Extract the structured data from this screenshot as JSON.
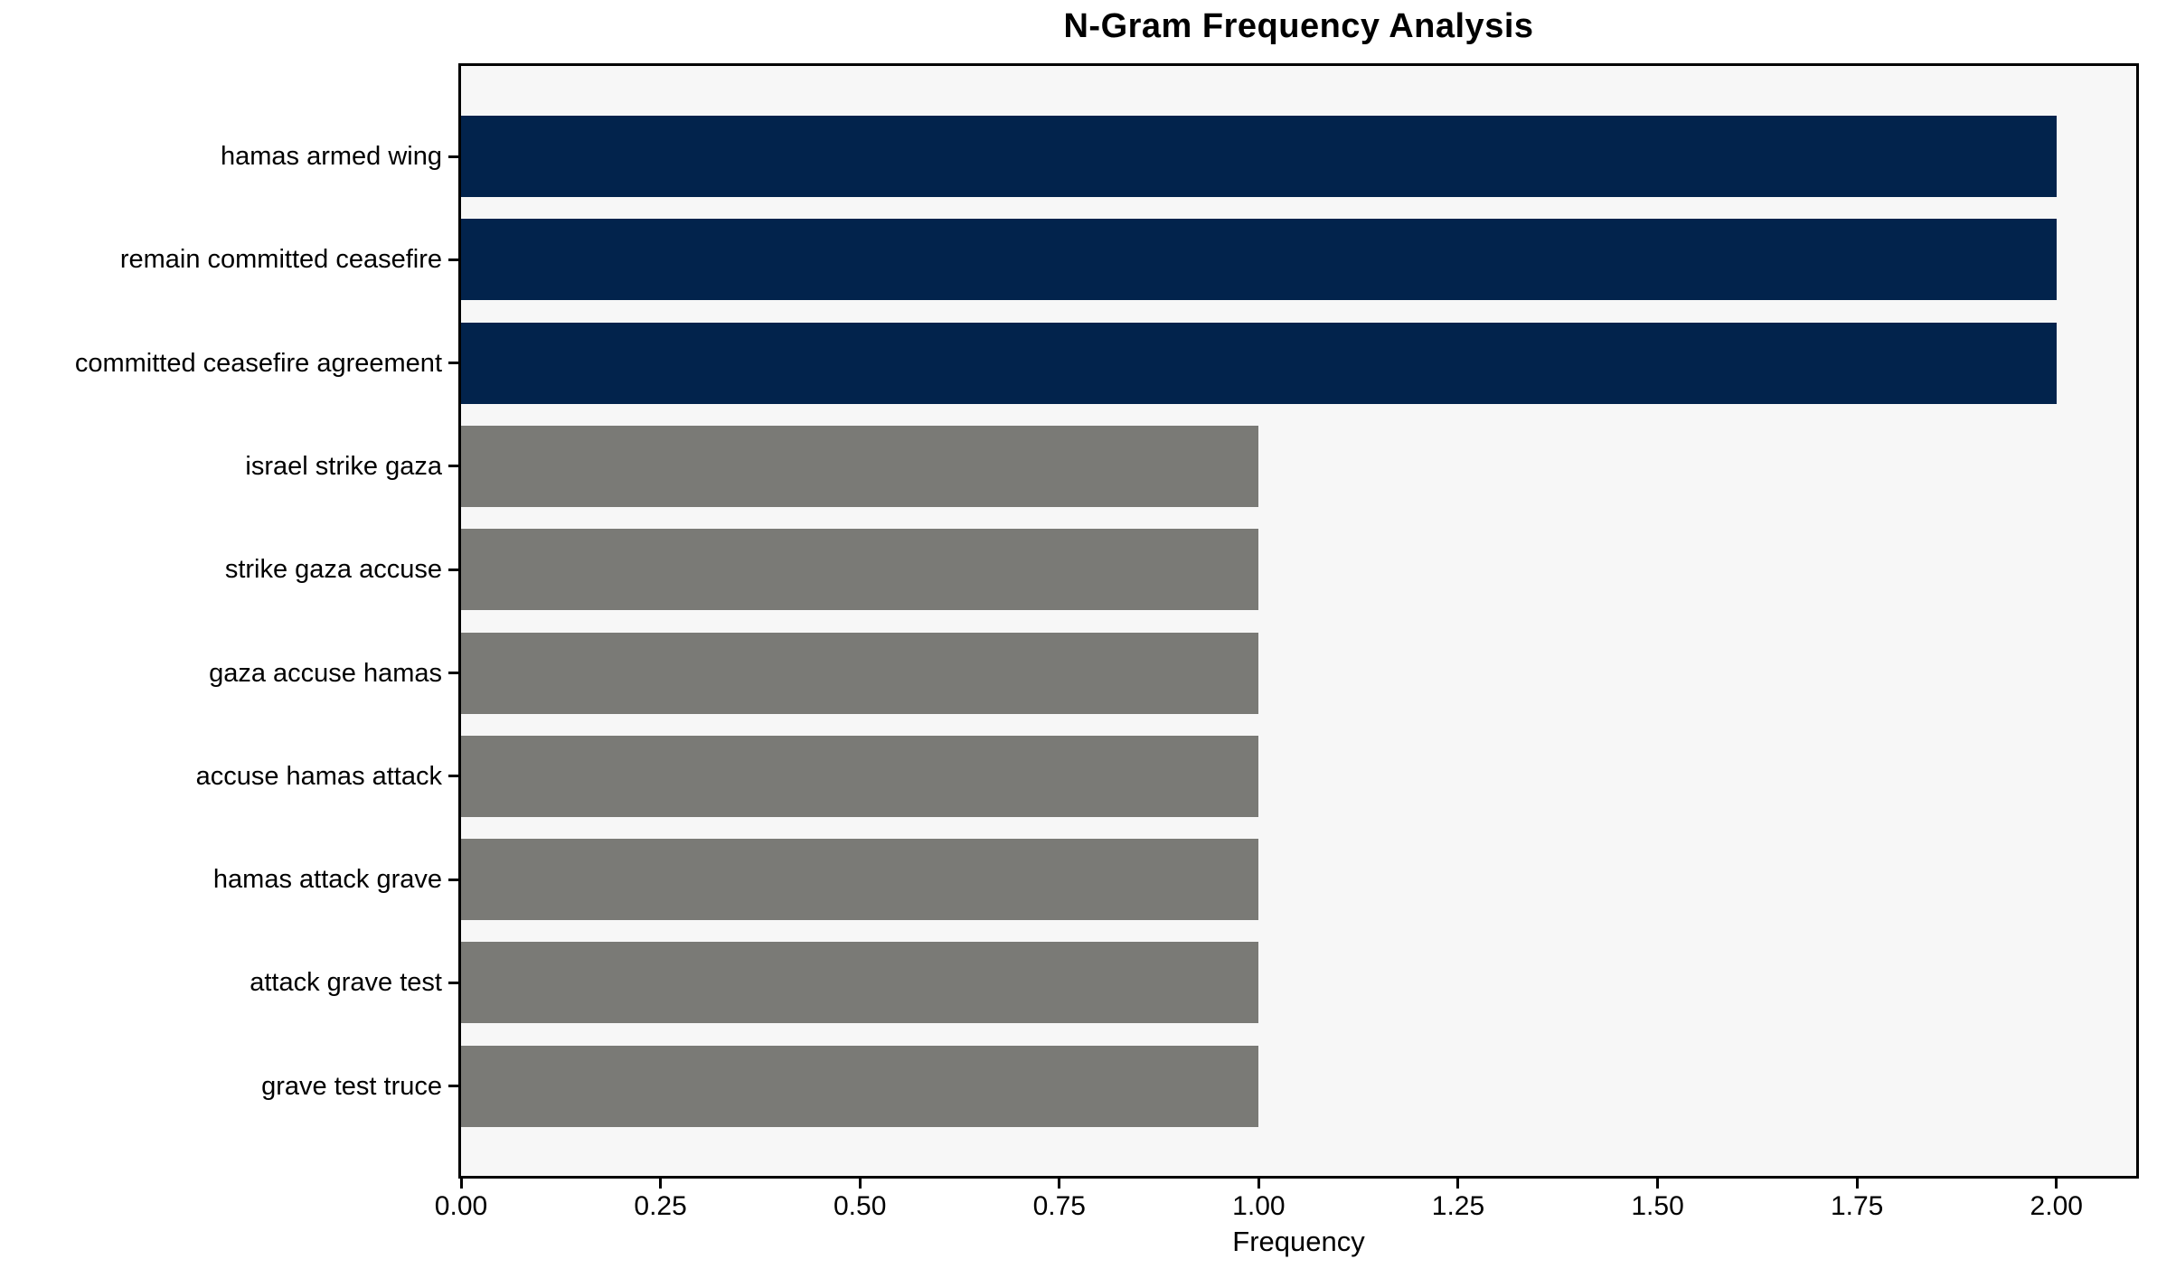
{
  "chart_data": {
    "type": "bar",
    "orientation": "horizontal",
    "title": "N-Gram Frequency Analysis",
    "xlabel": "Frequency",
    "ylabel": "",
    "categories": [
      "hamas armed wing",
      "remain committed ceasefire",
      "committed ceasefire agreement",
      "israel strike gaza",
      "strike gaza accuse",
      "gaza accuse hamas",
      "accuse hamas attack",
      "hamas attack grave",
      "attack grave test",
      "grave test truce"
    ],
    "values": [
      2,
      2,
      2,
      1,
      1,
      1,
      1,
      1,
      1,
      1
    ],
    "bar_colors": [
      "#02234c",
      "#02234c",
      "#02234c",
      "#7a7a76",
      "#7a7a76",
      "#7a7a76",
      "#7a7a76",
      "#7a7a76",
      "#7a7a76",
      "#7a7a76"
    ],
    "x_ticks": [
      "0.00",
      "0.25",
      "0.50",
      "0.75",
      "1.00",
      "1.25",
      "1.50",
      "1.75",
      "2.00"
    ],
    "xlim": [
      0,
      2.1
    ],
    "grid": false,
    "legend": null,
    "colors": {
      "highlight": "#02234c",
      "base": "#7a7a76",
      "plot_background": "#f7f7f7",
      "figure_background": "#ffffff",
      "frame": "#000000"
    }
  }
}
